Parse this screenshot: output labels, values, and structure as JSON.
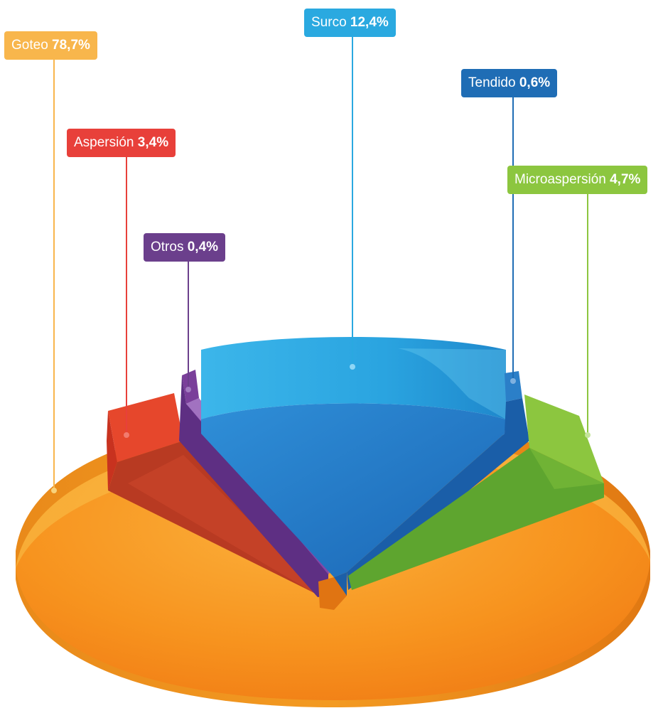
{
  "chart_data": {
    "type": "pie",
    "title": "",
    "slices": [
      {
        "name": "Goteo",
        "value_label": "78,7%",
        "value": 78.7,
        "color": "#f7931e"
      },
      {
        "name": "Aspersión",
        "value_label": "3,4%",
        "value": 3.4,
        "color": "#e8402f"
      },
      {
        "name": "Otros",
        "value_label": "0,4%",
        "value": 0.4,
        "color": "#6a3a8c"
      },
      {
        "name": "Surco",
        "value_label": "12,4%",
        "value": 12.4,
        "color": "#29a9e1"
      },
      {
        "name": "Tendido",
        "value_label": "0,6%",
        "value": 0.6,
        "color": "#1d6fb8"
      },
      {
        "name": "Microaspersión",
        "value_label": "4,7%",
        "value": 4.7,
        "color": "#8cc63f"
      }
    ],
    "label_colors": {
      "Goteo": "#f8b64c",
      "Aspersión": "#e8403a",
      "Otros": "#6b3f8c",
      "Surco": "#2aa9e0",
      "Tendido": "#1f6db5",
      "Microaspersión": "#8cc63f"
    }
  }
}
